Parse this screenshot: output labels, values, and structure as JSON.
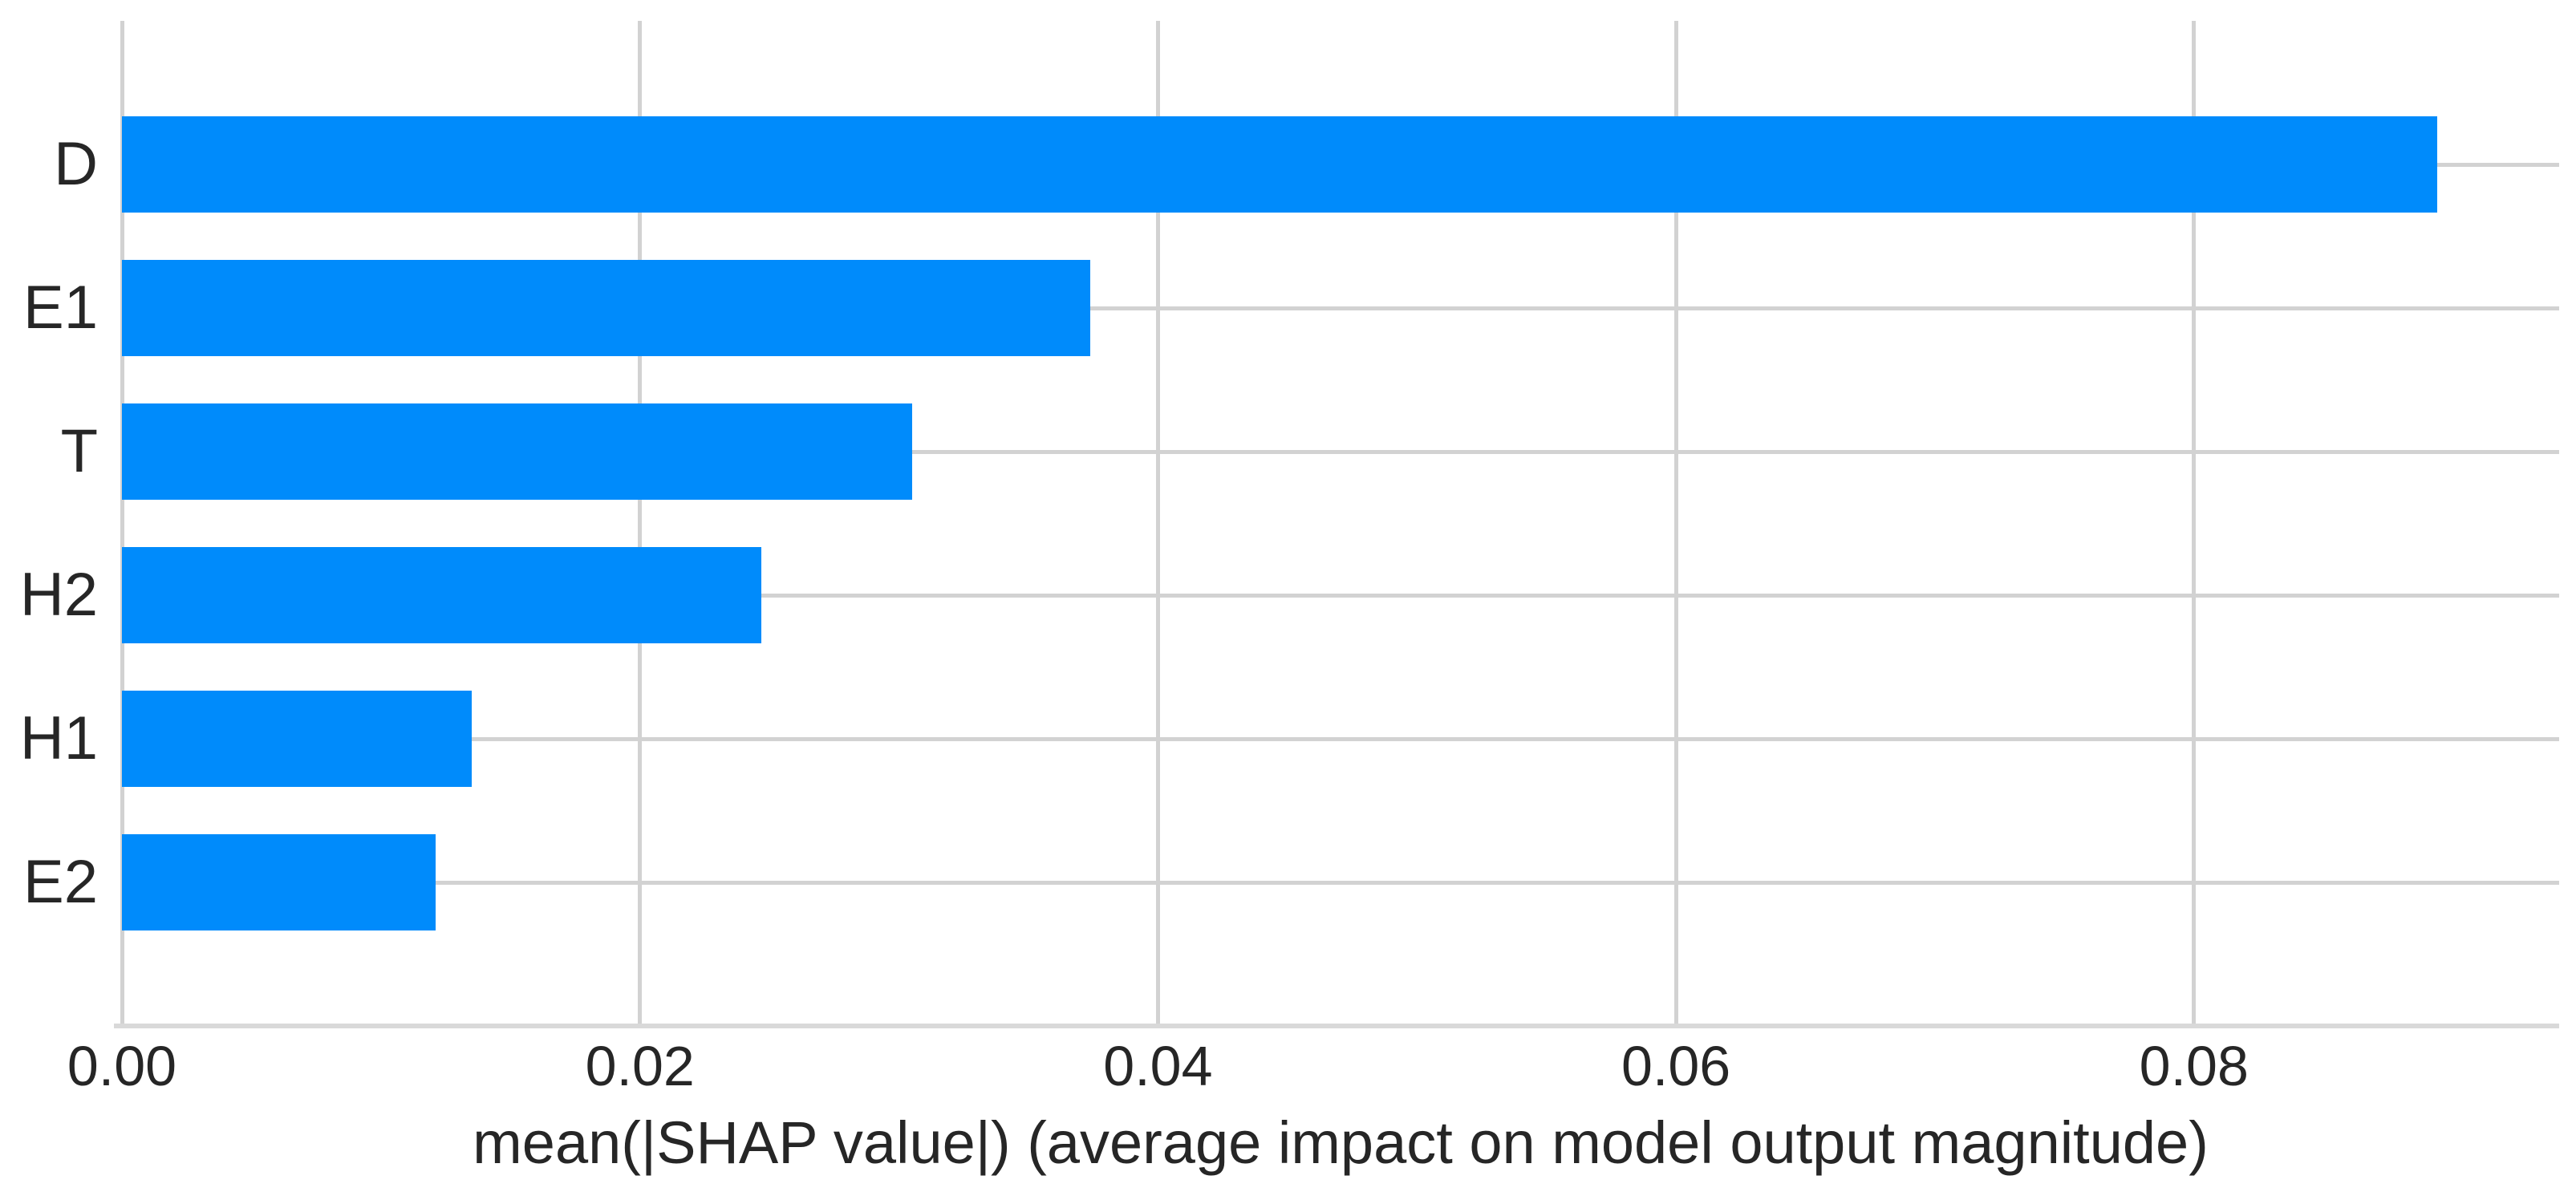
{
  "chart_data": {
    "type": "bar",
    "orientation": "horizontal",
    "title": "",
    "xlabel": "mean(|SHAP value|) (average impact on model output magnitude)",
    "ylabel": "",
    "categories": [
      "D",
      "E1",
      "T",
      "H2",
      "H1",
      "E2"
    ],
    "values": [
      0.0894,
      0.0374,
      0.0305,
      0.0247,
      0.0135,
      0.0121
    ],
    "xlim": [
      0,
      0.0941
    ],
    "xticks": [
      0,
      0.02,
      0.04,
      0.06,
      0.08
    ],
    "xtick_labels": [
      "0.00",
      "0.02",
      "0.04",
      "0.06",
      "0.08"
    ],
    "grid": true,
    "legend": "none",
    "bar_color": "#008bfb",
    "grid_color": "#d2d2d2",
    "axis_line_color": "#d9d9d9",
    "text_color": "#262626"
  }
}
